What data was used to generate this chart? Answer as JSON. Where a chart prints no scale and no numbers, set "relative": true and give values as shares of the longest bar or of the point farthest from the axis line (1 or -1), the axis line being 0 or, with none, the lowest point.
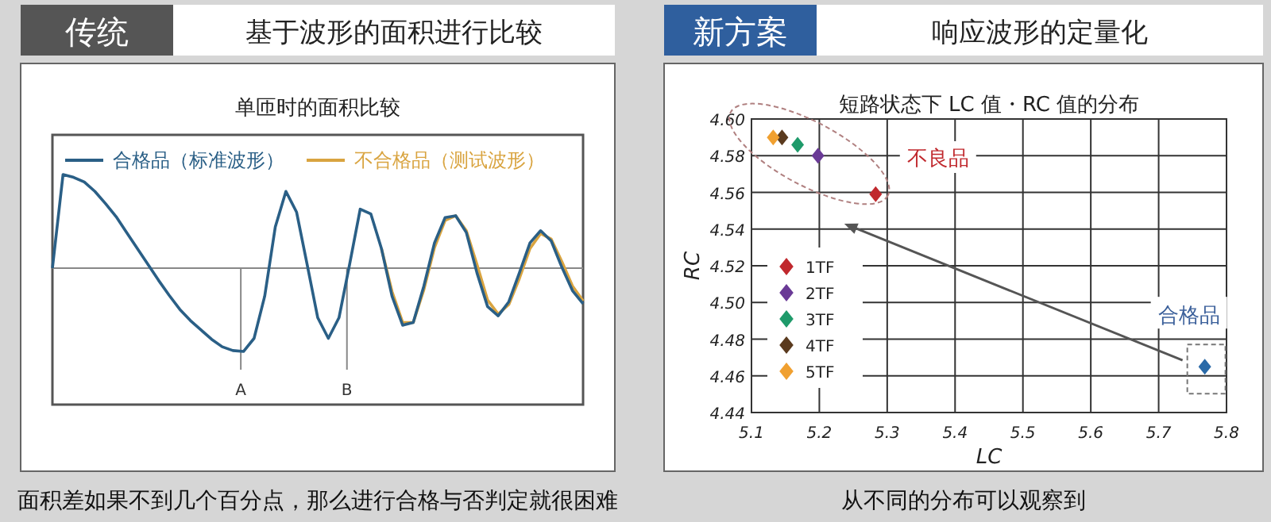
{
  "chart_data": [
    {
      "type": "line",
      "relative": true,
      "title": "单匝时的面积比较",
      "annotations": [
        "传统",
        "基于波形的面积进行比较",
        "面积差如果不到几个百分点，那么进行合格与否判定就很困难",
        "A",
        "B"
      ],
      "categories": [
        null,
        null,
        null,
        null,
        null,
        null,
        null,
        null,
        null,
        null,
        null,
        null,
        null,
        null,
        null,
        null,
        null,
        null,
        null,
        null,
        null,
        null,
        null,
        null,
        null,
        null,
        null,
        null,
        null,
        null,
        null,
        null,
        null,
        null,
        null,
        null,
        null,
        null,
        null,
        null,
        null,
        null,
        null,
        null,
        null,
        null,
        null,
        null,
        null,
        null,
        null
      ],
      "series": [
        {
          "name": "不合格品（测试波形）",
          "color": "#d9a440",
          "values": [
            null,
            null,
            null,
            null,
            null,
            null,
            null,
            null,
            null,
            null,
            null,
            null,
            null,
            null,
            null,
            null,
            null,
            null,
            null,
            null,
            null,
            null,
            null,
            null,
            null,
            null,
            null,
            null,
            null,
            null,
            null,
            0.21,
            -0.25,
            -0.58,
            -0.58,
            -0.23,
            0.22,
            0.51,
            0.56,
            0.4,
            0.04,
            -0.34,
            -0.49,
            -0.39,
            -0.11,
            0.21,
            0.37,
            0.31,
            0.07,
            -0.19,
            -0.35
          ]
        },
        {
          "name": "合格品（标准波形）",
          "color": "#2a5f86",
          "values": [
            0,
            1.0,
            0.97,
            0.92,
            0.82,
            0.69,
            0.55,
            0.38,
            0.21,
            0.04,
            -0.13,
            -0.29,
            -0.44,
            -0.56,
            -0.66,
            -0.76,
            -0.84,
            -0.88,
            -0.89,
            -0.75,
            -0.3,
            0.44,
            0.82,
            0.6,
            0.04,
            -0.53,
            -0.75,
            -0.53,
            0.04,
            0.63,
            0.58,
            0.21,
            -0.3,
            -0.61,
            -0.58,
            -0.19,
            0.27,
            0.54,
            0.56,
            0.38,
            -0.05,
            -0.41,
            -0.51,
            -0.36,
            -0.05,
            0.27,
            0.4,
            0.29,
            0.01,
            -0.24,
            -0.38
          ]
        }
      ],
      "legend": "top"
    },
    {
      "type": "scatter",
      "title": "短路状态下 LC 值・RC 值的分布",
      "xlabel": "LC",
      "ylabel": "RC",
      "annotations": [
        "新方案",
        "响应波形的定量化",
        "从不同的分布可以观察到",
        "不良品",
        {
          "text": "合格品",
          "x": 5.768,
          "y": 4.465
        }
      ],
      "series": [
        {
          "name": "1TF",
          "color": "#c0282d",
          "x": [
            5.283
          ],
          "values": [
            4.559
          ]
        },
        {
          "name": "2TF",
          "color": "#6a3a96",
          "x": [
            5.198
          ],
          "values": [
            4.58
          ]
        },
        {
          "name": "3TF",
          "color": "#1e9a6a",
          "x": [
            5.168
          ],
          "values": [
            4.586
          ]
        },
        {
          "name": "4TF",
          "color": "#5a3a1e",
          "x": [
            5.145
          ],
          "values": [
            4.59
          ]
        },
        {
          "name": "5TF",
          "color": "#f0a030",
          "x": [
            5.132
          ],
          "values": [
            4.59
          ]
        },
        {
          "color": "#2a6aa8",
          "x": [
            5.768
          ],
          "values": [
            4.465
          ]
        }
      ],
      "marker": "diamond",
      "legend": "left",
      "grid": true,
      "xlim": [
        5.1,
        5.8
      ],
      "xticks": [
        5.1,
        5.2,
        5.3,
        5.4,
        5.5,
        5.6,
        5.7,
        5.8
      ],
      "ylim": [
        4.44,
        4.6
      ],
      "yticks": [
        4.44,
        4.46,
        4.48,
        {
          "value": 4.5,
          "label": "4.50"
        },
        4.52,
        4.54,
        4.56,
        4.58,
        {
          "value": 4.6,
          "label": "4.60"
        }
      ]
    }
  ]
}
